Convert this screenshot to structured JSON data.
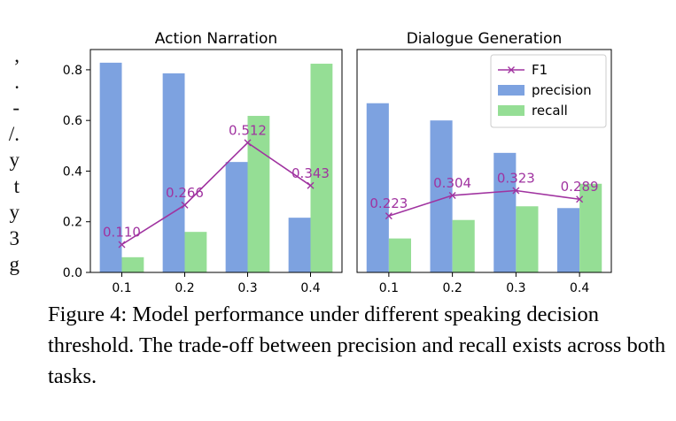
{
  "left_margin_fragments": [
    ",",
    ".",
    "-",
    "/.",
    "y",
    "t",
    "y",
    "3",
    "g"
  ],
  "bottom_fragment": "",
  "caption": "Figure 4: Model performance under different speaking decision threshold. The trade-off between precision and recall exists across both tasks.",
  "colors": {
    "precision": "#7da2e0",
    "recall": "#95de95",
    "f1": "#a033a0"
  },
  "chart_data": [
    {
      "type": "bar",
      "title": "Action Narration",
      "categories": [
        "0.1",
        "0.2",
        "0.3",
        "0.4"
      ],
      "ylim": [
        0,
        0.88
      ],
      "yticks": [
        "0.0",
        "0.2",
        "0.4",
        "0.6",
        "0.8"
      ],
      "grid": false,
      "legend": null,
      "series": [
        {
          "name": "precision",
          "type": "bar",
          "values": [
            0.828,
            0.786,
            0.436,
            0.216
          ]
        },
        {
          "name": "recall",
          "type": "bar",
          "values": [
            0.06,
            0.16,
            0.618,
            0.824
          ]
        },
        {
          "name": "F1",
          "type": "line",
          "marker": "x",
          "values": [
            0.11,
            0.266,
            0.512,
            0.343
          ],
          "labels": [
            "0.110",
            "0.266",
            "0.512",
            "0.343"
          ]
        }
      ]
    },
    {
      "type": "bar",
      "title": "Dialogue Generation",
      "categories": [
        "0.1",
        "0.2",
        "0.3",
        "0.4"
      ],
      "ylim": [
        0,
        0.88
      ],
      "grid": false,
      "legend": "top-right",
      "series": [
        {
          "name": "precision",
          "type": "bar",
          "values": [
            0.668,
            0.6,
            0.472,
            0.254
          ]
        },
        {
          "name": "recall",
          "type": "bar",
          "values": [
            0.134,
            0.207,
            0.261,
            0.35
          ]
        },
        {
          "name": "F1",
          "type": "line",
          "marker": "x",
          "values": [
            0.223,
            0.304,
            0.323,
            0.289
          ],
          "labels": [
            "0.223",
            "0.304",
            "0.323",
            "0.289"
          ]
        }
      ]
    }
  ]
}
